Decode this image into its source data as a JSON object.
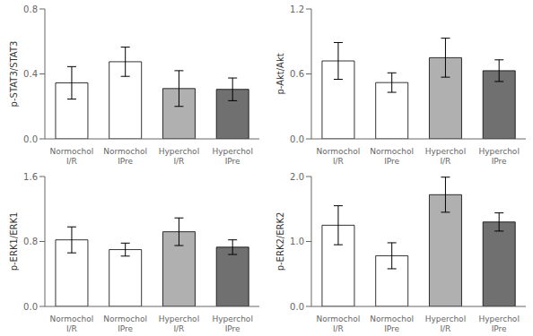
{
  "chart_data": [
    {
      "type": "bar",
      "ylabel": "p-STAT3/STAT3",
      "categories": [
        "Normochol\nI/R",
        "Normochol\nIPre",
        "Hyperchol\nI/R",
        "Hyperchol\nIPre"
      ],
      "values": [
        0.345,
        0.475,
        0.31,
        0.305
      ],
      "errors": [
        0.1,
        0.09,
        0.11,
        0.07
      ],
      "colors": [
        "white",
        "white",
        "#b0b0b0",
        "#707070"
      ],
      "ylim": [
        0,
        0.8
      ],
      "yticks": [
        {
          "value": 0,
          "label": "0.0"
        },
        0.4,
        0.8
      ],
      "grid": false
    },
    {
      "type": "bar",
      "ylabel": "p-Akt/Akt",
      "categories": [
        "Normochol\nI/R",
        "Normochol\nIPre",
        "Hyperchol\nI/R",
        "Hyperchol\nIPre"
      ],
      "values": [
        0.72,
        0.52,
        0.75,
        0.63
      ],
      "errors": [
        0.17,
        0.09,
        0.18,
        0.1
      ],
      "colors": [
        "white",
        "white",
        "#b0b0b0",
        "#707070"
      ],
      "ylim": [
        0,
        1.2
      ],
      "yticks": [
        {
          "value": 0,
          "label": "0.0"
        },
        0.6,
        1.2
      ],
      "grid": false
    },
    {
      "type": "bar",
      "ylabel": "p-ERK1/ERK1",
      "categories": [
        "Normochol\nI/R",
        "Normochol\nIPre",
        "Hyperchol\nI/R",
        "Hyperchol\nIPre"
      ],
      "values": [
        0.82,
        0.7,
        0.92,
        0.73
      ],
      "errors": [
        0.16,
        0.08,
        0.17,
        0.09
      ],
      "colors": [
        "white",
        "white",
        "#b0b0b0",
        "#707070"
      ],
      "ylim": [
        0,
        1.6
      ],
      "yticks": [
        {
          "value": 0,
          "label": "0.0"
        },
        0.8,
        1.6
      ],
      "grid": false
    },
    {
      "type": "bar",
      "ylabel": "p-ERK2/ERK2",
      "categories": [
        "Normochol\nI/R",
        "Normochol\nIPre",
        "Hyperchol\nI/R",
        "Hyperchol\nIPre"
      ],
      "values": [
        1.25,
        0.78,
        1.72,
        1.3
      ],
      "errors": [
        0.3,
        0.2,
        0.27,
        0.14
      ],
      "colors": [
        "white",
        "white",
        "#b0b0b0",
        "#707070"
      ],
      "ylim": [
        0,
        2.0
      ],
      "yticks": [
        {
          "value": 0,
          "label": "0.0"
        },
        {
          "value": 1.0,
          "label": "1.0"
        },
        {
          "value": 2.0,
          "label": "2.0"
        }
      ],
      "grid": false
    }
  ]
}
